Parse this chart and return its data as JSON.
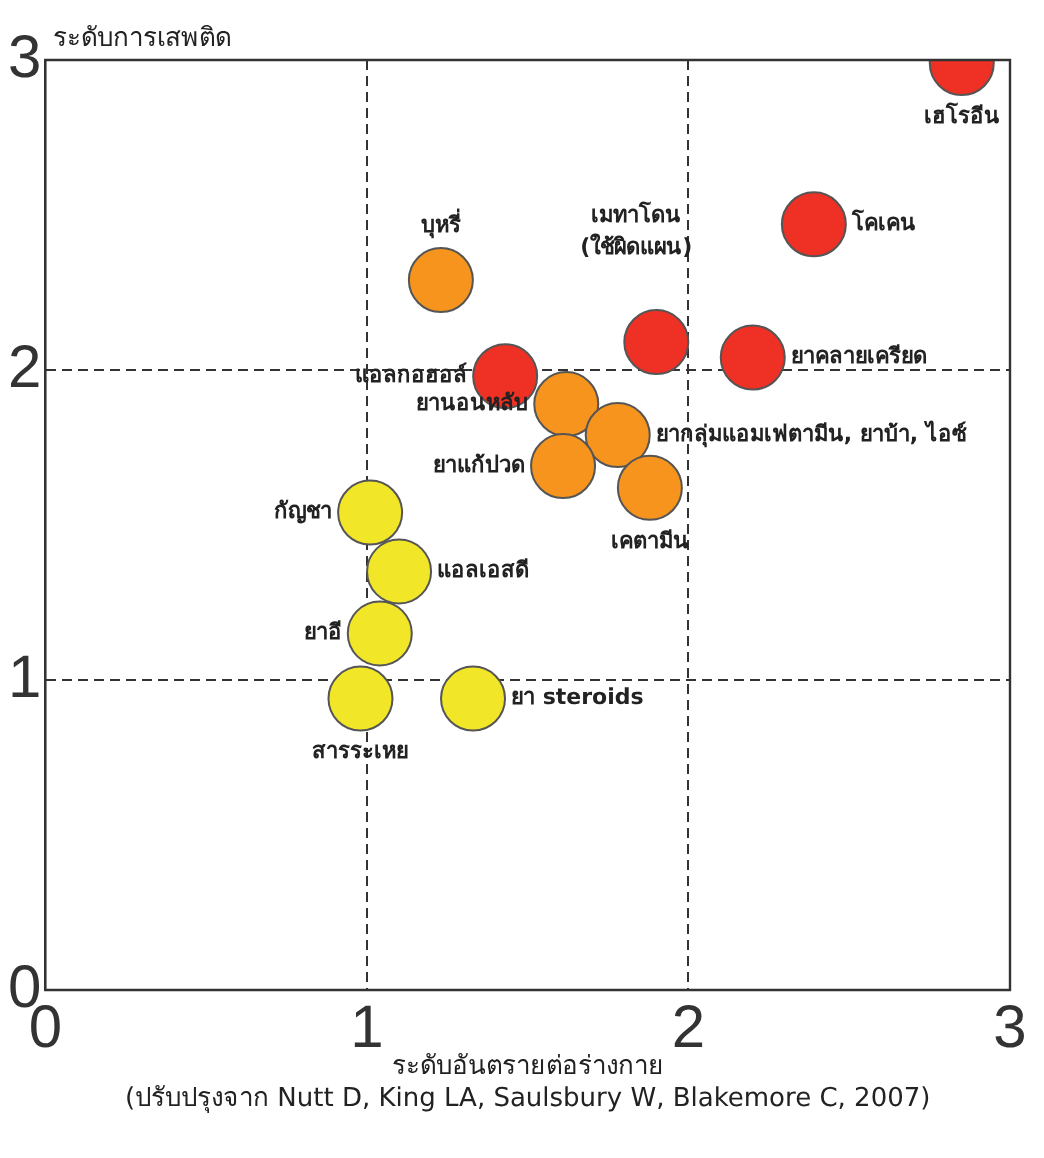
{
  "chart_data": {
    "type": "scatter",
    "ylabel": "ระดับการเสพติด",
    "xlabel": "ระดับอันตรายต่อร่างกาย",
    "annotations": [
      "(ปรับปรุงจาก Nutt D, King LA, Saulsbury W, Blakemore C, 2007)"
    ],
    "xlim": [
      0,
      3
    ],
    "ylim": [
      0,
      3
    ],
    "xticks": [
      0,
      1,
      2,
      3
    ],
    "yticks": [
      0,
      1,
      2,
      3
    ],
    "grid": true,
    "marker": "circle",
    "series": [
      {
        "x": [
          2.85,
          2.39,
          1.23,
          1.9,
          2.2,
          1.43,
          1.62,
          1.78,
          1.61,
          1.88,
          1.01,
          1.1,
          1.04,
          0.98,
          1.33
        ],
        "values": [
          2.99,
          2.47,
          2.29,
          2.09,
          2.04,
          1.98,
          1.89,
          1.79,
          1.69,
          1.62,
          1.54,
          1.35,
          1.15,
          0.94,
          0.94
        ],
        "colors": [
          "#ee3124",
          "#ee3124",
          "#f7941d",
          "#ee3124",
          "#ee3124",
          "#ee3124",
          "#f7941d",
          "#f7941d",
          "#f7941d",
          "#f7941d",
          "#f2e628",
          "#f2e628",
          "#f2e628",
          "#f2e628",
          "#f2e628"
        ],
        "value_labels": [
          "เฮโรอีน",
          "โคเคน",
          "บุหรี่",
          "เมทาโดน (ใช้ผิดแผน)",
          "ยาคลายเครียด",
          "แอลกอฮอล์",
          "ยานอนหลับ",
          "ยากลุ่มแอมเฟตามีน, ยาบ้า, ไอซ์",
          "ยาแก้ปวด",
          "เคตามีน",
          "กัญชา",
          "แอลเอสดี",
          "ยาอี",
          "สารระเหย",
          "ยา steroids"
        ]
      }
    ]
  }
}
